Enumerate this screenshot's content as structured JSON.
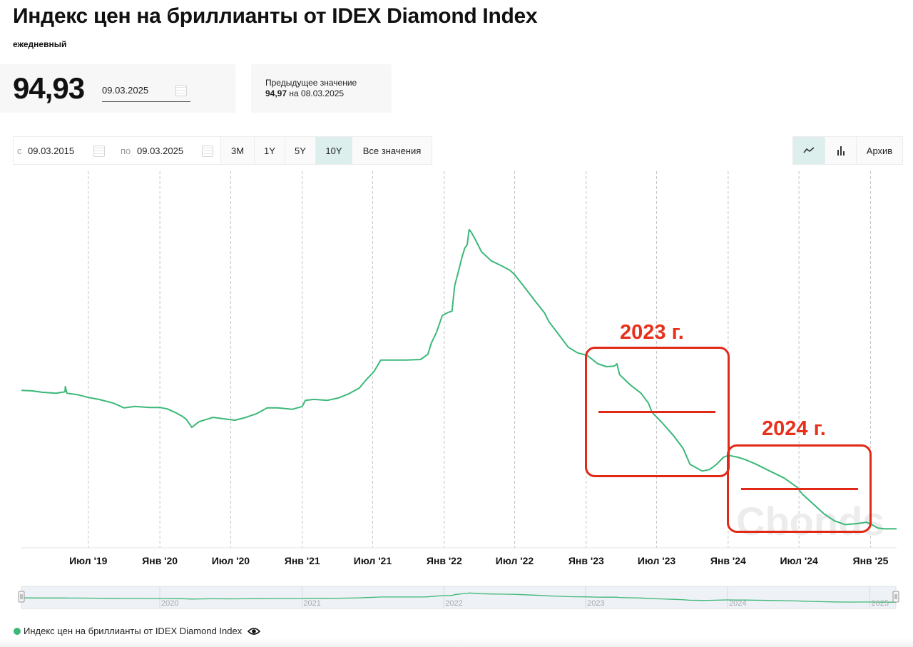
{
  "header": {
    "title": "Индекс цен на бриллианты от IDEX Diamond Index",
    "frequency": "ежедневный"
  },
  "current": {
    "value": "94,93",
    "date": "09.03.2025"
  },
  "previous": {
    "label": "Предыдущее значение",
    "value": "94,97",
    "on": "на",
    "date": "08.03.2025"
  },
  "toolbar": {
    "from_prefix": "с",
    "from_date": "09.03.2015",
    "to_prefix": "по",
    "to_date": "09.03.2025",
    "ranges": [
      "3M",
      "1Y",
      "5Y",
      "10Y",
      "Все значения"
    ],
    "active_range": "10Y",
    "archive_label": "Архив",
    "chart_types": [
      "line-chart-icon",
      "bar-chart-icon"
    ],
    "active_chart_type": "line-chart-icon"
  },
  "colors": {
    "series": "#3cb878",
    "annotation": "#e02a17",
    "active_button": "#dcefec"
  },
  "watermark": "Cbonds",
  "annotations": [
    {
      "label": "2023 г."
    },
    {
      "label": "2024 г."
    }
  ],
  "legend": {
    "label": "Индекс цен на бриллианты от IDEX Diamond Index",
    "icon": "eye-icon"
  },
  "chart_data": {
    "type": "line",
    "title": "Индекс цен на бриллианты от IDEX Diamond Index",
    "xlabel": "",
    "ylabel": "",
    "grid": "vertical dashed at x ticks",
    "y_tick_labels_shown": false,
    "xlim": [
      "2019-01-10",
      "2025-03-09"
    ],
    "ylim": [
      90.9,
      170.3
    ],
    "x_ticks": [
      {
        "date": "2019-07-01",
        "label": "Июл '19"
      },
      {
        "date": "2020-01-01",
        "label": "Янв '20"
      },
      {
        "date": "2020-07-01",
        "label": "Июл '20"
      },
      {
        "date": "2021-01-01",
        "label": "Янв '21"
      },
      {
        "date": "2021-07-01",
        "label": "Июл '21"
      },
      {
        "date": "2022-01-01",
        "label": "Янв '22"
      },
      {
        "date": "2022-07-01",
        "label": "Июл '22"
      },
      {
        "date": "2023-01-01",
        "label": "Янв '23"
      },
      {
        "date": "2023-07-01",
        "label": "Июл '23"
      },
      {
        "date": "2024-01-01",
        "label": "Янв '24"
      },
      {
        "date": "2024-07-01",
        "label": "Июл '24"
      },
      {
        "date": "2025-01-01",
        "label": "Янв '25"
      }
    ],
    "navigator_ticks": [
      {
        "date": "2020-01-01",
        "label": "2020"
      },
      {
        "date": "2021-01-01",
        "label": "2021"
      },
      {
        "date": "2022-01-01",
        "label": "2022"
      },
      {
        "date": "2023-01-01",
        "label": "2023"
      },
      {
        "date": "2024-01-01",
        "label": "2024"
      },
      {
        "date": "2025-01-01",
        "label": "2025"
      }
    ],
    "annotation_ranges": [
      {
        "label": "2023 г.",
        "from": "2023-01-01",
        "to": "2024-01-01",
        "avg_value": 118.7
      },
      {
        "label": "2024 г.",
        "from": "2024-01-01",
        "to": "2025-01-01",
        "avg_value": 103.6
      }
    ],
    "series": [
      {
        "name": "Индекс цен на бриллианты от IDEX Diamond Index",
        "points": [
          [
            "2019-01-10",
            124.1
          ],
          [
            "2019-02-06",
            124.0
          ],
          [
            "2019-03-04",
            123.7
          ],
          [
            "2019-04-09",
            123.5
          ],
          [
            "2019-05-02",
            123.8
          ],
          [
            "2019-05-03",
            124.9
          ],
          [
            "2019-05-07",
            123.5
          ],
          [
            "2019-06-03",
            123.2
          ],
          [
            "2019-07-01",
            122.6
          ],
          [
            "2019-07-28",
            122.2
          ],
          [
            "2019-09-04",
            121.4
          ],
          [
            "2019-10-01",
            120.4
          ],
          [
            "2019-10-29",
            120.7
          ],
          [
            "2019-12-05",
            120.5
          ],
          [
            "2020-01-01",
            120.5
          ],
          [
            "2020-01-20",
            120.2
          ],
          [
            "2020-02-08",
            119.5
          ],
          [
            "2020-02-26",
            118.7
          ],
          [
            "2020-03-09",
            118.0
          ],
          [
            "2020-03-23",
            116.3
          ],
          [
            "2020-04-11",
            117.5
          ],
          [
            "2020-05-17",
            118.4
          ],
          [
            "2020-06-23",
            118.0
          ],
          [
            "2020-07-12",
            117.8
          ],
          [
            "2020-08-09",
            118.4
          ],
          [
            "2020-09-06",
            119.2
          ],
          [
            "2020-10-03",
            120.4
          ],
          [
            "2020-10-30",
            120.4
          ],
          [
            "2020-12-06",
            120.1
          ],
          [
            "2021-01-01",
            120.7
          ],
          [
            "2021-01-09",
            122.0
          ],
          [
            "2021-01-31",
            122.2
          ],
          [
            "2021-03-07",
            122.0
          ],
          [
            "2021-04-04",
            122.5
          ],
          [
            "2021-05-01",
            123.4
          ],
          [
            "2021-05-28",
            124.6
          ],
          [
            "2021-06-16",
            126.5
          ],
          [
            "2021-07-04",
            128.0
          ],
          [
            "2021-07-22",
            130.5
          ],
          [
            "2021-08-19",
            130.5
          ],
          [
            "2021-09-25",
            130.5
          ],
          [
            "2021-11-01",
            130.6
          ],
          [
            "2021-11-20",
            131.7
          ],
          [
            "2021-11-29",
            134.1
          ],
          [
            "2021-12-12",
            136.3
          ],
          [
            "2021-12-27",
            139.9
          ],
          [
            "2022-01-10",
            140.5
          ],
          [
            "2022-01-21",
            140.8
          ],
          [
            "2022-01-28",
            146.2
          ],
          [
            "2022-02-05",
            148.7
          ],
          [
            "2022-02-16",
            152.3
          ],
          [
            "2022-02-23",
            154.1
          ],
          [
            "2022-03-01",
            154.8
          ],
          [
            "2022-03-06",
            158.0
          ],
          [
            "2022-03-11",
            157.5
          ],
          [
            "2022-03-22",
            155.9
          ],
          [
            "2022-04-07",
            153.3
          ],
          [
            "2022-05-02",
            151.4
          ],
          [
            "2022-05-30",
            150.3
          ],
          [
            "2022-06-19",
            149.4
          ],
          [
            "2022-06-30",
            148.6
          ],
          [
            "2022-07-24",
            146.1
          ],
          [
            "2022-08-21",
            143.1
          ],
          [
            "2022-09-16",
            140.4
          ],
          [
            "2022-09-27",
            138.6
          ],
          [
            "2022-10-24",
            135.7
          ],
          [
            "2022-11-16",
            133.2
          ],
          [
            "2022-12-10",
            132.0
          ],
          [
            "2023-01-03",
            131.5
          ],
          [
            "2023-01-31",
            129.7
          ],
          [
            "2023-02-22",
            129.1
          ],
          [
            "2023-03-14",
            129.2
          ],
          [
            "2023-03-21",
            129.7
          ],
          [
            "2023-03-28",
            127.4
          ],
          [
            "2023-04-25",
            125.2
          ],
          [
            "2023-05-22",
            123.5
          ],
          [
            "2023-06-10",
            121.4
          ],
          [
            "2023-06-19",
            119.5
          ],
          [
            "2023-07-16",
            117.2
          ],
          [
            "2023-08-13",
            114.6
          ],
          [
            "2023-09-07",
            111.9
          ],
          [
            "2023-09-25",
            108.5
          ],
          [
            "2023-10-26",
            107.1
          ],
          [
            "2023-11-14",
            107.4
          ],
          [
            "2023-12-02",
            108.5
          ],
          [
            "2023-12-20",
            110.0
          ],
          [
            "2024-01-02",
            110.4
          ],
          [
            "2024-01-26",
            110.0
          ],
          [
            "2024-02-14",
            109.5
          ],
          [
            "2024-03-11",
            108.6
          ],
          [
            "2024-04-17",
            107.1
          ],
          [
            "2024-05-24",
            105.6
          ],
          [
            "2024-06-26",
            103.7
          ],
          [
            "2024-07-09",
            102.3
          ],
          [
            "2024-08-06",
            100.2
          ],
          [
            "2024-09-03",
            98.1
          ],
          [
            "2024-09-30",
            96.6
          ],
          [
            "2024-10-28",
            95.8
          ],
          [
            "2024-11-25",
            96.0
          ],
          [
            "2024-12-22",
            96.3
          ],
          [
            "2025-01-04",
            95.8
          ],
          [
            "2025-01-19",
            95.1
          ],
          [
            "2025-02-06",
            94.9
          ],
          [
            "2025-03-09",
            94.93
          ]
        ]
      }
    ]
  }
}
